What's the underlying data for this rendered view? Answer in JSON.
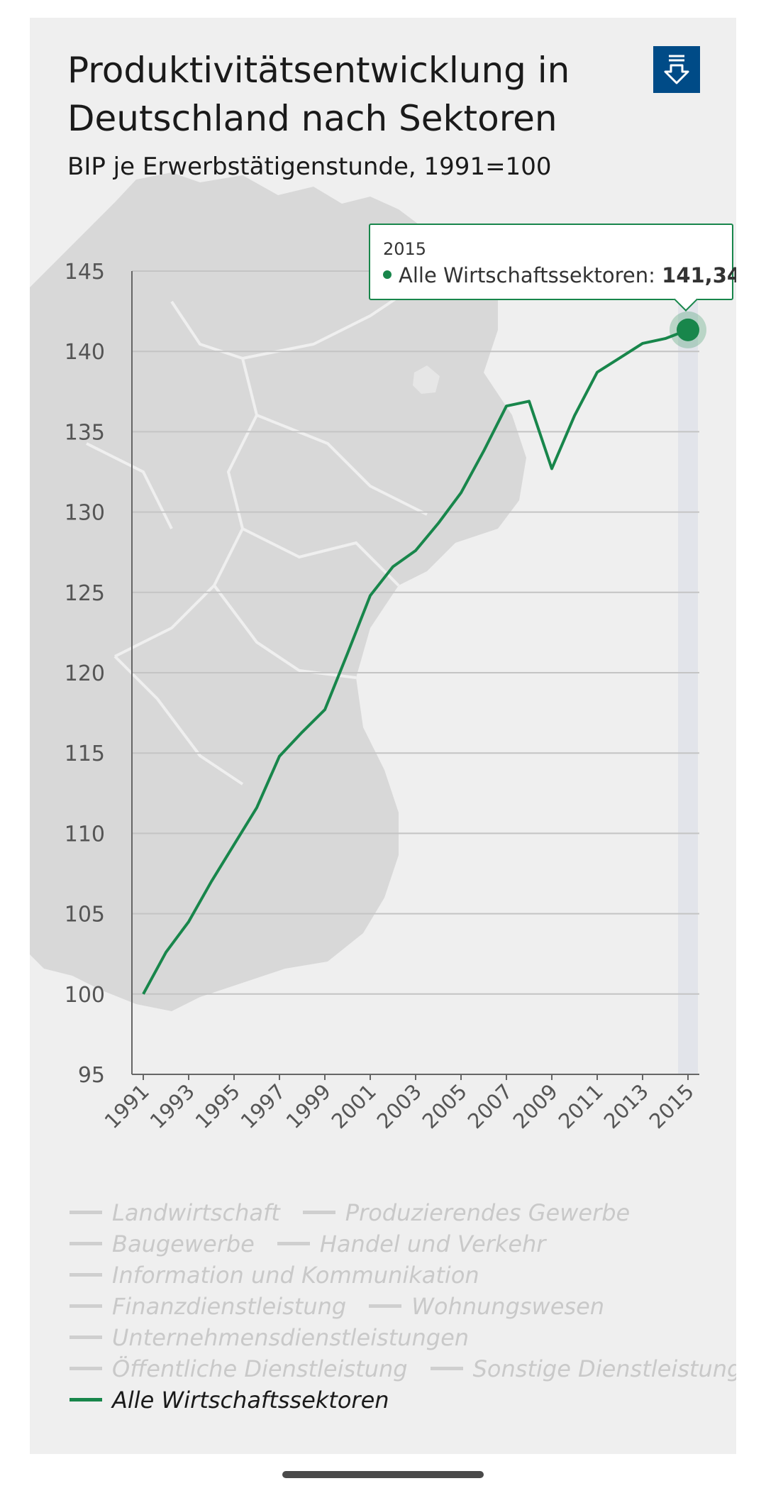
{
  "header": {
    "title": "Produktivitätsentwicklung in Deutschland nach Sektoren",
    "subtitle": "BIP je Erwerbstätigenstunde, 1991=100",
    "download_icon": "download-icon"
  },
  "tooltip": {
    "year": "2015",
    "series": "Alle Wirtschaftssektoren:",
    "value": "141,34"
  },
  "legend": {
    "rows": [
      [
        {
          "label": "Landwirtschaft",
          "active": false
        },
        {
          "label": "Produzierendes Gewerbe",
          "active": false
        }
      ],
      [
        {
          "label": "Baugewerbe",
          "active": false
        },
        {
          "label": "Handel und Verkehr",
          "active": false
        }
      ],
      [
        {
          "label": "Information und Kommunikation",
          "active": false
        }
      ],
      [
        {
          "label": "Finanzdienstleistung",
          "active": false
        },
        {
          "label": "Wohnungswesen",
          "active": false
        }
      ],
      [
        {
          "label": "Unternehmensdienstleistungen",
          "active": false
        }
      ],
      [
        {
          "label": "Öffentliche Dienstleistung",
          "active": false
        },
        {
          "label": "Sonstige Dienstleistung",
          "active": false
        }
      ],
      [
        {
          "label": "Alle Wirtschaftssektoren",
          "active": true
        }
      ]
    ]
  },
  "colors": {
    "series": "#18864b",
    "inactive": "#cfcfcf",
    "button": "#004b87"
  },
  "chart_data": {
    "type": "line",
    "title": "Produktivitätsentwicklung in Deutschland nach Sektoren",
    "subtitle": "BIP je Erwerbstätigenstunde, 1991=100",
    "x": [
      1991,
      1992,
      1993,
      1994,
      1995,
      1996,
      1997,
      1998,
      1999,
      2000,
      2001,
      2002,
      2003,
      2004,
      2005,
      2006,
      2007,
      2008,
      2009,
      2010,
      2011,
      2012,
      2013,
      2014,
      2015
    ],
    "xticks": [
      "1991",
      "1993",
      "1995",
      "1997",
      "1999",
      "2001",
      "2003",
      "2005",
      "2007",
      "2009",
      "2011",
      "2013",
      "2015"
    ],
    "yticks": [
      "145",
      "140",
      "135",
      "130",
      "125",
      "120",
      "115",
      "110",
      "105",
      "100",
      "95"
    ],
    "ylim": [
      95,
      145
    ],
    "grid": true,
    "highlight_x": 2015,
    "series": [
      {
        "name": "Alle Wirtschaftssektoren",
        "values": [
          100,
          102.6,
          104.5,
          107.0,
          109.3,
          111.6,
          114.8,
          116.3,
          117.7,
          121.2,
          124.8,
          126.6,
          127.6,
          129.3,
          131.2,
          133.8,
          136.6,
          136.9,
          132.7,
          136.0,
          138.7,
          139.6,
          140.5,
          140.8,
          141.34
        ]
      }
    ]
  }
}
